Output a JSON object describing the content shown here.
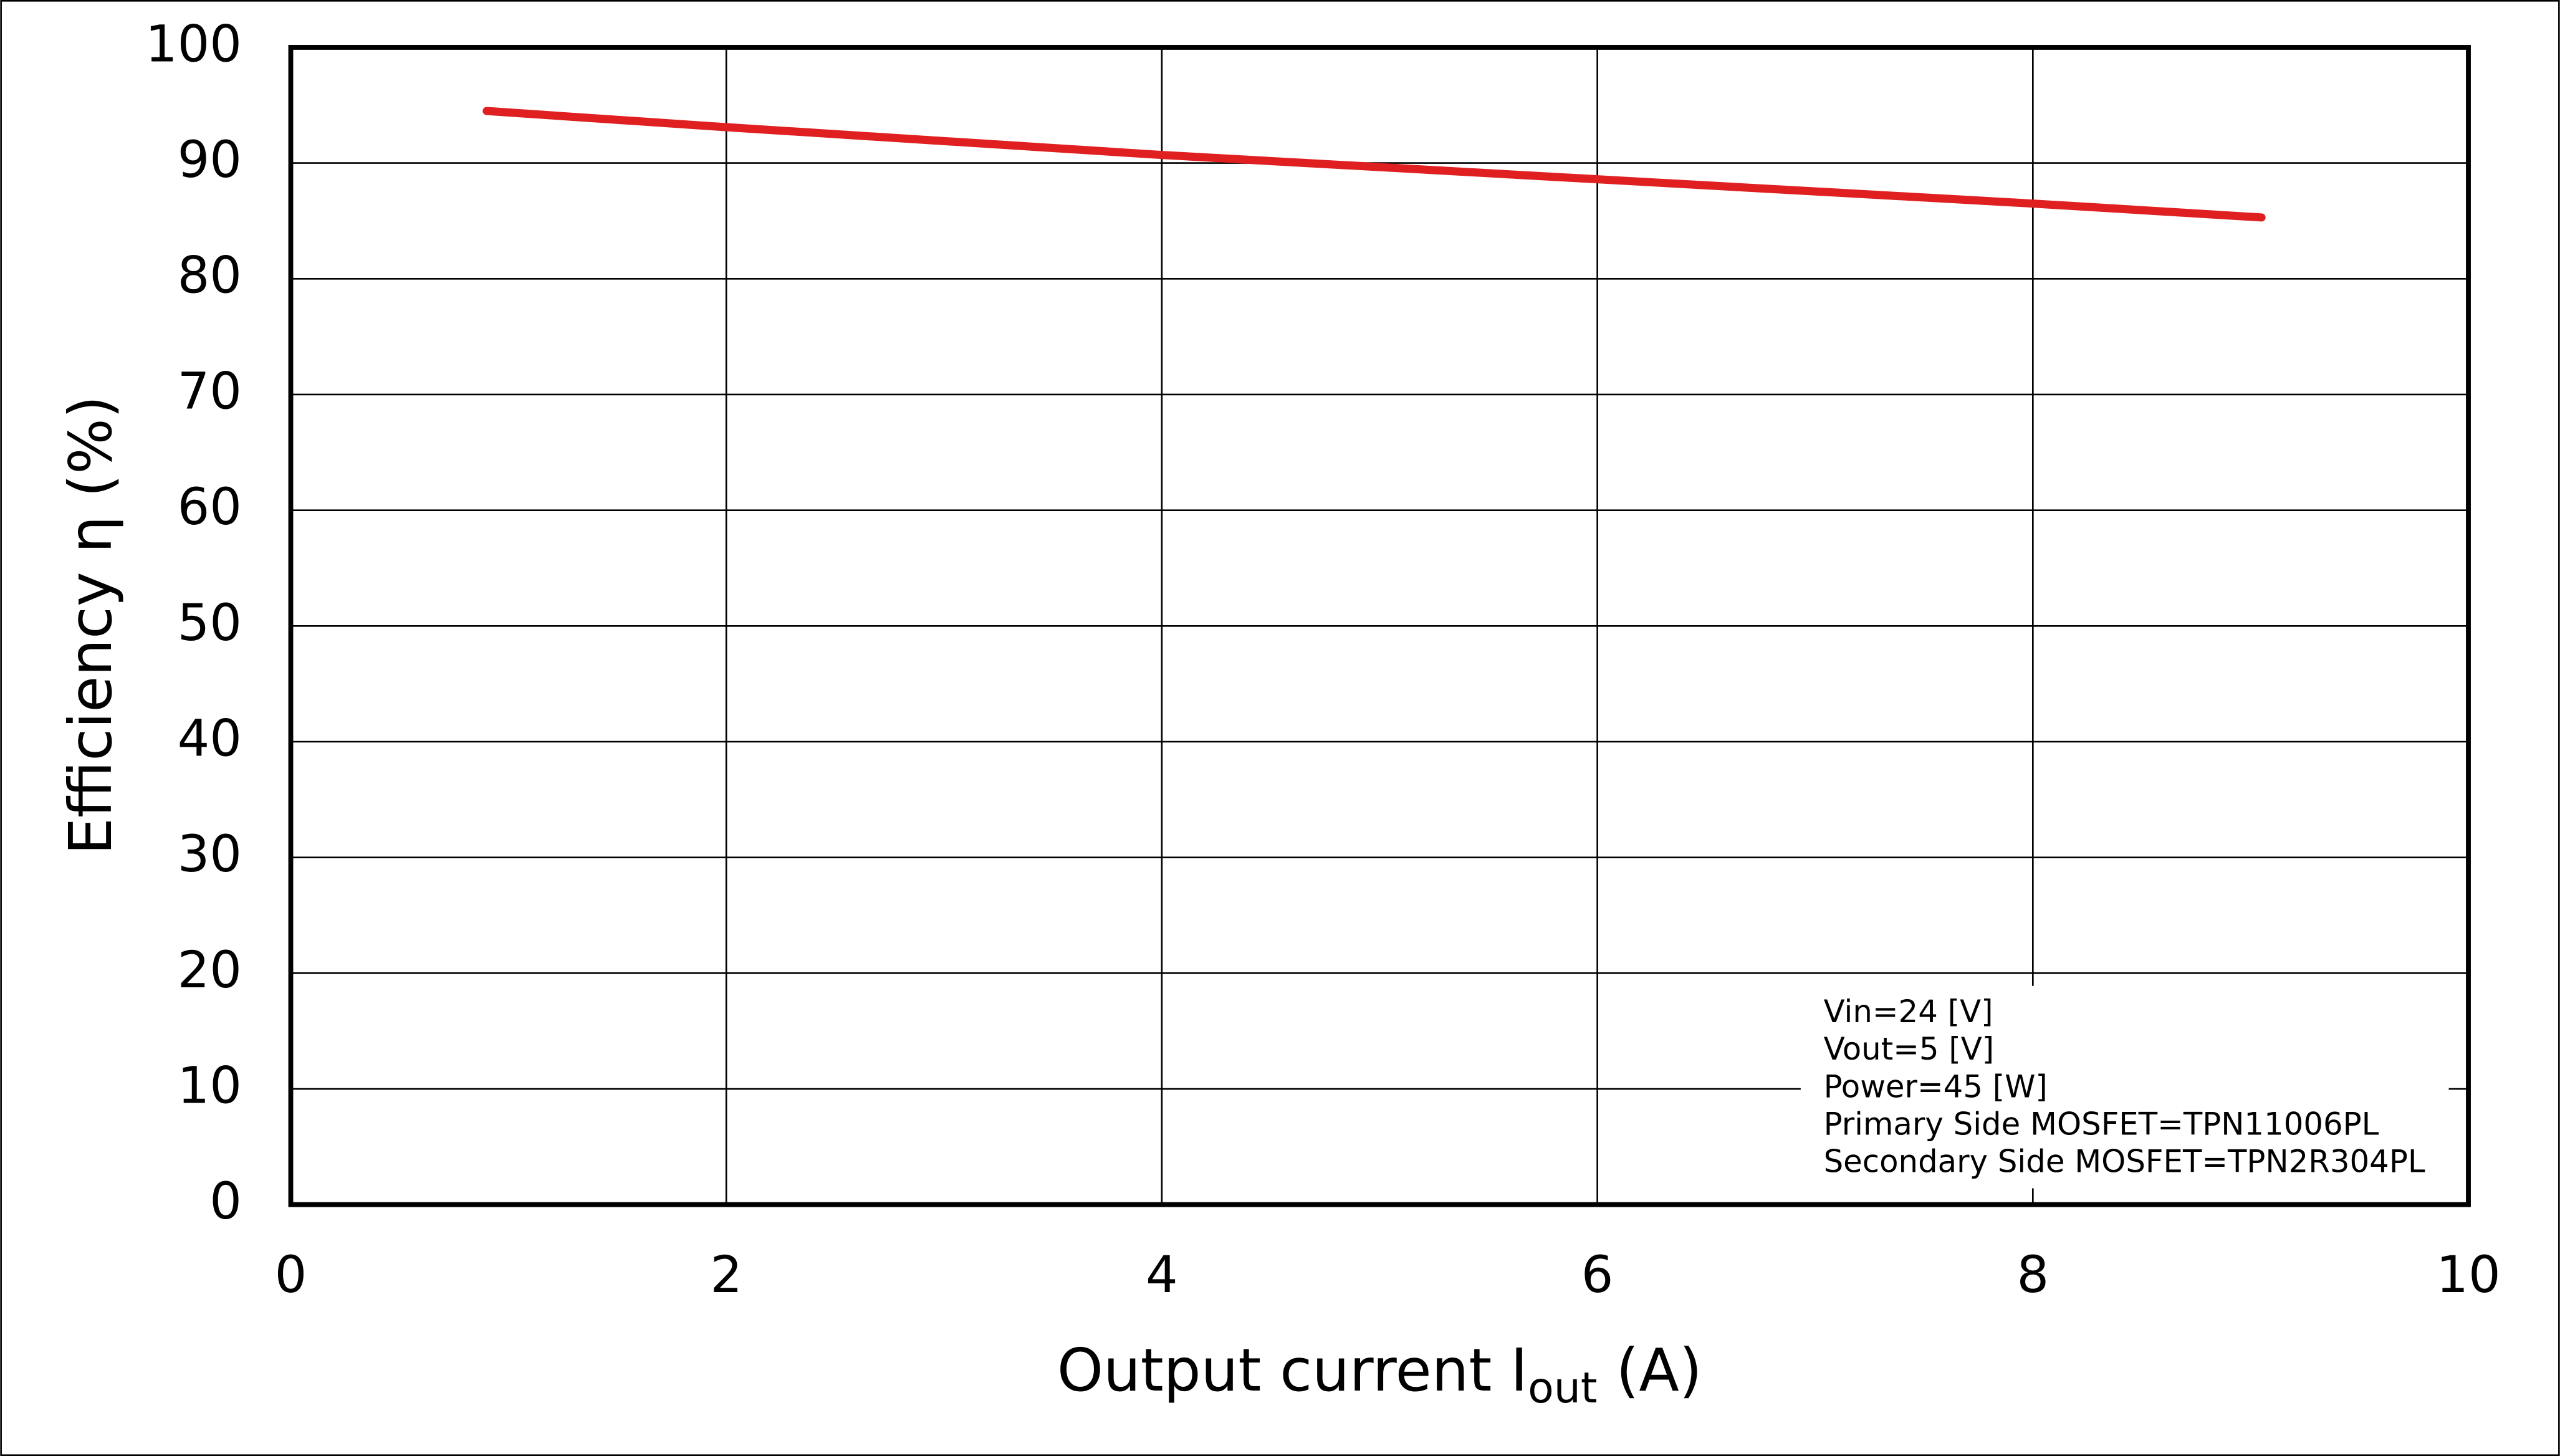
{
  "chart_data": {
    "type": "line",
    "x_label": {
      "text": "Output current  I",
      "subscript": "out",
      "suffix": " (A)"
    },
    "y_label": "Efficiency  η (%)",
    "x": [
      0.9,
      2,
      4,
      6,
      8,
      9.05
    ],
    "series": [
      {
        "name": "Efficiency",
        "color": "#e02020",
        "values": [
          94.5,
          93.1,
          90.7,
          88.6,
          86.5,
          85.3
        ]
      }
    ],
    "xlim": [
      0,
      10
    ],
    "xticks": [
      0,
      2,
      4,
      6,
      8,
      10
    ],
    "ylim": [
      0,
      100
    ],
    "yticks": [
      0,
      10,
      20,
      30,
      40,
      50,
      60,
      70,
      80,
      90,
      100
    ],
    "grid": true,
    "annotation": [
      "Vin=24 [V]",
      "Vout=5 [V]",
      "Power=45 [W]",
      "Primary Side MOSFET=TPN11006PL",
      "Secondary Side MOSFET=TPN2R304PL"
    ]
  }
}
